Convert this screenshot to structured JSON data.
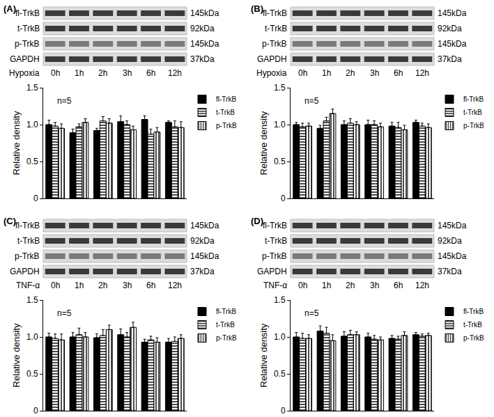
{
  "chart_data": [
    {
      "type": "bar",
      "title": "(A)",
      "annotations": [
        "n=5"
      ],
      "x_label": "Hypoxia",
      "y_label": "Relative density",
      "categories": [
        "0h",
        "1h",
        "2h",
        "3h",
        "6h",
        "12h"
      ],
      "ylim": [
        0,
        1.5
      ],
      "yticks": [
        0,
        0.5,
        {
          "value": 1,
          "label": "1.0"
        },
        1.5
      ],
      "grid": false,
      "legend": "upper right",
      "tick_labels": "y",
      "series": [
        {
          "name": "fl-TrkB",
          "color": "#000000",
          "marker": "solid",
          "values": [
            1.0,
            0.89,
            0.92,
            1.04,
            1.07,
            1.03
          ],
          "errors": [
            0.06,
            0.05,
            0.03,
            0.08,
            0.05,
            0.02
          ]
        },
        {
          "name": "t-TrkB",
          "color": "#ffffff",
          "marker": "horizontal_stripes",
          "values": [
            0.98,
            0.97,
            1.05,
            1.0,
            0.87,
            0.97
          ],
          "errors": [
            0.05,
            0.04,
            0.06,
            0.05,
            0.07,
            0.08
          ]
        },
        {
          "name": "p-TrkB",
          "color": "#ffffff",
          "marker": "vertical_stripes",
          "values": [
            0.95,
            1.03,
            1.02,
            0.93,
            0.9,
            0.96
          ],
          "errors": [
            0.06,
            0.05,
            0.06,
            0.05,
            0.06,
            0.08
          ]
        }
      ]
    },
    {
      "type": "bar",
      "title": "(B)",
      "annotations": [
        "n=5"
      ],
      "x_label": "Hypoxia",
      "y_label": "Relative density",
      "categories": [
        "0h",
        "1h",
        "2h",
        "3h",
        "6h",
        "12h"
      ],
      "ylim": [
        0,
        1.5
      ],
      "yticks": [
        0,
        0.5,
        {
          "value": 1,
          "label": "1.0"
        },
        1.5
      ],
      "grid": false,
      "legend": "upper right",
      "tick_labels": "y",
      "series": [
        {
          "name": "fl-TrkB",
          "color": "#000000",
          "marker": "solid",
          "values": [
            1.0,
            0.95,
            1.0,
            1.0,
            0.98,
            1.03
          ],
          "errors": [
            0.03,
            0.04,
            0.05,
            0.06,
            0.05,
            0.03
          ]
        },
        {
          "name": "t-TrkB",
          "color": "#ffffff",
          "marker": "horizontal_stripes",
          "values": [
            0.97,
            1.05,
            1.02,
            1.0,
            0.96,
            0.98
          ],
          "errors": [
            0.05,
            0.05,
            0.06,
            0.05,
            0.07,
            0.04
          ]
        },
        {
          "name": "p-TrkB",
          "color": "#ffffff",
          "marker": "vertical_stripes",
          "values": [
            0.98,
            1.15,
            1.0,
            0.97,
            0.93,
            0.96
          ],
          "errors": [
            0.04,
            0.06,
            0.04,
            0.05,
            0.06,
            0.05
          ]
        }
      ]
    },
    {
      "type": "bar",
      "title": "(C)",
      "annotations": [
        "n=5"
      ],
      "x_label": "TNF-α",
      "y_label": "Relative density",
      "categories": [
        "0h",
        "1h",
        "2h",
        "3h",
        "6h",
        "12h"
      ],
      "ylim": [
        0,
        1.5
      ],
      "yticks": [
        0,
        0.5,
        {
          "value": 1,
          "label": "1.0"
        },
        1.5
      ],
      "grid": false,
      "legend": "upper right",
      "tick_labels": "y",
      "series": [
        {
          "name": "fl-TrkB",
          "color": "#000000",
          "marker": "solid",
          "values": [
            1.0,
            1.0,
            0.99,
            1.03,
            0.93,
            0.93
          ],
          "errors": [
            0.05,
            0.06,
            0.05,
            0.08,
            0.04,
            0.05
          ]
        },
        {
          "name": "t-TrkB",
          "color": "#ffffff",
          "marker": "horizontal_stripes",
          "values": [
            0.98,
            1.03,
            1.02,
            1.0,
            0.96,
            0.94
          ],
          "errors": [
            0.06,
            0.09,
            0.08,
            0.06,
            0.05,
            0.06
          ]
        },
        {
          "name": "p-TrkB",
          "color": "#ffffff",
          "marker": "vertical_stripes",
          "values": [
            0.96,
            1.0,
            1.1,
            1.13,
            0.93,
            0.98
          ],
          "errors": [
            0.08,
            0.06,
            0.06,
            0.07,
            0.06,
            0.05
          ]
        }
      ]
    },
    {
      "type": "bar",
      "title": "(D)",
      "annotations": [
        "n=5"
      ],
      "x_label": "TNF-α",
      "y_label": "Relative density",
      "categories": [
        "0h",
        "1h",
        "2h",
        "3h",
        "6h",
        "12h"
      ],
      "ylim": [
        0,
        1.5
      ],
      "yticks": [
        0,
        0.5,
        {
          "value": 1,
          "label": "1.0"
        },
        1.5
      ],
      "grid": false,
      "legend": "upper right",
      "tick_labels": "y",
      "series": [
        {
          "name": "fl-TrkB",
          "color": "#000000",
          "marker": "solid",
          "values": [
            1.0,
            1.08,
            1.01,
            1.0,
            0.98,
            1.03
          ],
          "errors": [
            0.06,
            0.07,
            0.06,
            0.05,
            0.04,
            0.03
          ]
        },
        {
          "name": "t-TrkB",
          "color": "#ffffff",
          "marker": "horizontal_stripes",
          "values": [
            0.98,
            1.05,
            1.03,
            0.97,
            0.97,
            1.01
          ],
          "errors": [
            0.07,
            0.08,
            0.06,
            0.05,
            0.04,
            0.03
          ]
        },
        {
          "name": "p-TrkB",
          "color": "#ffffff",
          "marker": "vertical_stripes",
          "values": [
            0.98,
            0.95,
            1.03,
            0.96,
            1.02,
            1.02
          ],
          "errors": [
            0.05,
            0.08,
            0.04,
            0.04,
            0.05,
            0.03
          ]
        }
      ]
    }
  ],
  "blots": [
    {
      "rows": [
        {
          "label": "fl-TrkB",
          "size": "145kDa"
        },
        {
          "label": "t-TrkB",
          "size": "92kDa"
        },
        {
          "label": "p-TrkB",
          "size": "145kDa"
        },
        {
          "label": "GAPDH",
          "size": "37kDa"
        }
      ]
    },
    {
      "rows": [
        {
          "label": "fl-TrkB",
          "size": "145kDa"
        },
        {
          "label": "t-TrkB",
          "size": "92kDa"
        },
        {
          "label": "p-TrkB",
          "size": "145kDa"
        },
        {
          "label": "GAPDH",
          "size": "37kDa"
        }
      ]
    },
    {
      "rows": [
        {
          "label": "fl-TrkB",
          "size": "145kDa"
        },
        {
          "label": "t-TrkB",
          "size": "92kDa"
        },
        {
          "label": "p-TrkB",
          "size": "145kDa"
        },
        {
          "label": "GAPDH",
          "size": "37kDa"
        }
      ]
    },
    {
      "rows": [
        {
          "label": "fl-TrkB",
          "size": "145kDa"
        },
        {
          "label": "t-TrkB",
          "size": "92kDa"
        },
        {
          "label": "p-TrkB",
          "size": "145kDa"
        },
        {
          "label": "GAPDH",
          "size": "37kDa"
        }
      ]
    }
  ]
}
